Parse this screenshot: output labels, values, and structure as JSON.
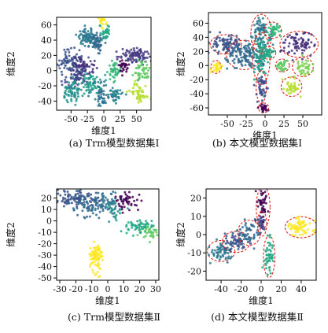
{
  "chart_data": [
    {
      "type": "scatter",
      "caption": "(a) Trm模型数据集Ⅰ",
      "xlabel": "维度1",
      "ylabel": "维度2",
      "xlim": [
        -72,
        72
      ],
      "ylim": [
        -52,
        70
      ],
      "xticks": [
        -50,
        -25,
        0,
        25,
        50
      ],
      "yticks": [
        -40,
        -20,
        0,
        20,
        40,
        60
      ],
      "dashed_outlines": false,
      "clusters": [
        {
          "color": "#fde725",
          "center": [
            -2,
            64
          ],
          "spread": [
            2.5,
            4
          ],
          "n": 20
        },
        {
          "color": "#2a788e",
          "center": [
            -25,
            44
          ],
          "spread": [
            7,
            5
          ],
          "n": 80
        },
        {
          "color": "#31688e",
          "center": [
            -10,
            38
          ],
          "spread": [
            6,
            6
          ],
          "n": 60
        },
        {
          "color": "#22a884",
          "center": [
            2,
            50
          ],
          "spread": [
            4,
            6
          ],
          "n": 30
        },
        {
          "color": "#443983",
          "center": [
            48,
            20
          ],
          "spread": [
            12,
            5
          ],
          "n": 90
        },
        {
          "color": "#3b528b",
          "center": [
            -52,
            12
          ],
          "spread": [
            9,
            8
          ],
          "n": 80
        },
        {
          "color": "#472d7b",
          "center": [
            -30,
            5
          ],
          "spread": [
            8,
            6
          ],
          "n": 60
        },
        {
          "color": "#3e4a89",
          "center": [
            -40,
            -8
          ],
          "spread": [
            10,
            7
          ],
          "n": 70
        },
        {
          "color": "#1f9e89",
          "center": [
            -20,
            -18
          ],
          "spread": [
            9,
            7
          ],
          "n": 60
        },
        {
          "color": "#21918c",
          "center": [
            -48,
            -28
          ],
          "spread": [
            8,
            7
          ],
          "n": 60
        },
        {
          "color": "#440154",
          "center": [
            30,
            5
          ],
          "spread": [
            4,
            5
          ],
          "n": 30
        },
        {
          "color": "#35b779",
          "center": [
            15,
            0
          ],
          "spread": [
            5,
            6
          ],
          "n": 40
        },
        {
          "color": "#5ec962",
          "center": [
            58,
            -2
          ],
          "spread": [
            6,
            7
          ],
          "n": 50
        },
        {
          "color": "#2c728e",
          "center": [
            -5,
            -30
          ],
          "spread": [
            7,
            7
          ],
          "n": 50
        },
        {
          "color": "#26828e",
          "center": [
            18,
            -32
          ],
          "spread": [
            6,
            5
          ],
          "n": 40
        },
        {
          "color": "#b5de2b",
          "center": [
            52,
            -30
          ],
          "spread": [
            7,
            6
          ],
          "n": 50
        }
      ]
    },
    {
      "type": "scatter",
      "caption": "(b) 本文模型数据集Ⅰ",
      "xlabel": "维度1",
      "ylabel": "维度2",
      "xlim": [
        -75,
        75
      ],
      "ylim": [
        -70,
        75
      ],
      "xticks": [
        -50,
        -25,
        0,
        25,
        50
      ],
      "yticks": [
        -60,
        -40,
        -20,
        0,
        20,
        40,
        60
      ],
      "dashed_outlines": true,
      "clusters": [
        {
          "color": "#3b528b",
          "center": [
            -52,
            30
          ],
          "spread": [
            9,
            6
          ],
          "n": 90
        },
        {
          "color": "#31688e",
          "center": [
            -28,
            15
          ],
          "spread": [
            10,
            9
          ],
          "n": 110
        },
        {
          "color": "#2a788e",
          "center": [
            -5,
            45
          ],
          "spread": [
            6,
            12
          ],
          "n": 80
        },
        {
          "color": "#1f9e89",
          "center": [
            -5,
            10
          ],
          "spread": [
            5,
            16
          ],
          "n": 90
        },
        {
          "color": "#3e4a89",
          "center": [
            -5,
            -30
          ],
          "spread": [
            3,
            10
          ],
          "n": 40
        },
        {
          "color": "#440154",
          "center": [
            -2,
            -60
          ],
          "spread": [
            3,
            3
          ],
          "n": 25
        },
        {
          "color": "#35b779",
          "center": [
            10,
            50
          ],
          "spread": [
            5,
            5
          ],
          "n": 35
        },
        {
          "color": "#22a884",
          "center": [
            5,
            18
          ],
          "spread": [
            4,
            4
          ],
          "n": 30
        },
        {
          "color": "#472d7b",
          "center": [
            45,
            30
          ],
          "spread": [
            11,
            8
          ],
          "n": 80
        },
        {
          "color": "#5ec962",
          "center": [
            23,
            0
          ],
          "spread": [
            4,
            4
          ],
          "n": 30
        },
        {
          "color": "#7ad151",
          "center": [
            50,
            -2
          ],
          "spread": [
            6,
            6
          ],
          "n": 40
        },
        {
          "color": "#b5de2b",
          "center": [
            35,
            -30
          ],
          "spread": [
            6,
            6
          ],
          "n": 40
        },
        {
          "color": "#fde725",
          "center": [
            -65,
            -2
          ],
          "spread": [
            3,
            4
          ],
          "n": 30
        }
      ]
    },
    {
      "type": "scatter",
      "caption": "(c) Trm模型数据集Ⅱ",
      "xlabel": "维度1",
      "ylabel": "维度2",
      "xlim": [
        -32,
        32
      ],
      "ylim": [
        -52,
        28
      ],
      "xticks": [
        -30,
        -20,
        -10,
        0,
        10,
        20,
        30
      ],
      "yticks": [
        -50,
        -40,
        -30,
        -20,
        -10,
        0,
        10,
        20
      ],
      "dashed_outlines": false,
      "clusters": [
        {
          "color": "#3b528b",
          "center": [
            -20,
            19
          ],
          "spread": [
            7,
            3
          ],
          "n": 100
        },
        {
          "color": "#31688e",
          "center": [
            -10,
            14
          ],
          "spread": [
            6,
            5
          ],
          "n": 80
        },
        {
          "color": "#2a788e",
          "center": [
            0,
            16
          ],
          "spread": [
            4,
            4
          ],
          "n": 40
        },
        {
          "color": "#440154",
          "center": [
            12,
            18
          ],
          "spread": [
            3,
            4
          ],
          "n": 50
        },
        {
          "color": "#21918c",
          "center": [
            5,
            8
          ],
          "spread": [
            3,
            3
          ],
          "n": 20
        },
        {
          "color": "#22a884",
          "center": [
            20,
            -5
          ],
          "spread": [
            5,
            3
          ],
          "n": 60
        },
        {
          "color": "#5ec962",
          "center": [
            27,
            -10
          ],
          "spread": [
            3,
            3
          ],
          "n": 30
        },
        {
          "color": "#fde725",
          "center": [
            -7,
            -33
          ],
          "spread": [
            2,
            7
          ],
          "n": 80
        }
      ]
    },
    {
      "type": "scatter",
      "caption": "(d) 本文模型数据集Ⅱ",
      "xlabel": "维度1",
      "ylabel": "维度2",
      "xlim": [
        -55,
        55
      ],
      "ylim": [
        -25,
        25
      ],
      "xticks": [
        -40,
        -20,
        0,
        20,
        40
      ],
      "yticks": [
        -20,
        -10,
        0,
        10,
        20
      ],
      "dashed_outlines": true,
      "clusters": [
        {
          "color": "#2a788e",
          "center": [
            -40,
            -9
          ],
          "spread": [
            6,
            2.5
          ],
          "n": 60
        },
        {
          "color": "#3b528b",
          "center": [
            -25,
            -4
          ],
          "spread": [
            6,
            2.5
          ],
          "n": 60
        },
        {
          "color": "#31688e",
          "center": [
            -12,
            1
          ],
          "spread": [
            5,
            3
          ],
          "n": 50
        },
        {
          "color": "#440154",
          "center": [
            2,
            15
          ],
          "spread": [
            3,
            5
          ],
          "n": 50
        },
        {
          "color": "#3e4a89",
          "center": [
            1,
            6
          ],
          "spread": [
            2,
            3
          ],
          "n": 20
        },
        {
          "color": "#22a884",
          "center": [
            8,
            -12
          ],
          "spread": [
            2.5,
            5
          ],
          "n": 50
        },
        {
          "color": "#fde725",
          "center": [
            40,
            4
          ],
          "spread": [
            7,
            2.5
          ],
          "n": 70
        }
      ]
    }
  ]
}
